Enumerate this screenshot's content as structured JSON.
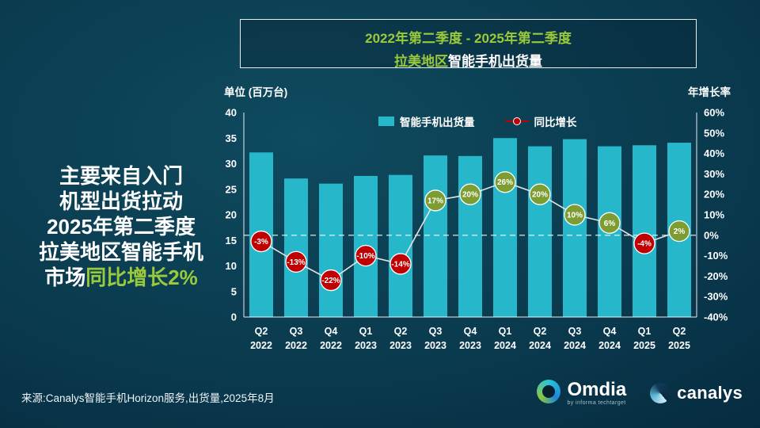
{
  "header": {
    "period": "2022年第二季度 - 2025年第二季度",
    "region": "拉美地区",
    "subject": "智能手机出货量"
  },
  "headline": {
    "lines": [
      "主要来自入门",
      "机型出货拉动",
      "2025年第二季度",
      "拉美地区智能手机"
    ],
    "last_white": "市场",
    "last_green": "同比增长2%"
  },
  "footer": {
    "source": "来源:Canalys智能手机Horizon服务,出货量,2025年8月"
  },
  "logos": {
    "omdia": "Omdia",
    "omdia_sub": "by informa techtarget",
    "canalys": "canalys"
  },
  "chart_data": {
    "type": "bar",
    "subtype": "bar+line-combo",
    "title": "拉美地区智能手机出货量",
    "period": "2022年第二季度 - 2025年第二季度",
    "categories": [
      [
        "Q2",
        "2022"
      ],
      [
        "Q3",
        "2022"
      ],
      [
        "Q4",
        "2022"
      ],
      [
        "Q1",
        "2023"
      ],
      [
        "Q2",
        "2023"
      ],
      [
        "Q3",
        "2023"
      ],
      [
        "Q4",
        "2023"
      ],
      [
        "Q1",
        "2024"
      ],
      [
        "Q2",
        "2024"
      ],
      [
        "Q3",
        "2024"
      ],
      [
        "Q4",
        "2024"
      ],
      [
        "Q1",
        "2025"
      ],
      [
        "Q2",
        "2025"
      ]
    ],
    "left_axis": {
      "title": "单位 (百万台)",
      "min": 0,
      "max": 40,
      "step": 5
    },
    "right_axis": {
      "title": "年增长率",
      "min": -40,
      "max": 60,
      "step": 10,
      "unit": "%"
    },
    "series": [
      {
        "name": "智能手机出货量",
        "type": "bar",
        "axis": "left",
        "unit": "百万台",
        "values": [
          32.2,
          27.1,
          26.1,
          27.6,
          27.8,
          31.6,
          31.5,
          35.0,
          33.4,
          34.8,
          33.4,
          33.6,
          34.1
        ]
      },
      {
        "name": "同比增长",
        "type": "line",
        "axis": "right",
        "unit": "%",
        "values": [
          -3,
          -13,
          -22,
          -10,
          -14,
          17,
          20,
          26,
          20,
          10,
          6,
          -4,
          2
        ],
        "labels": [
          "-3%",
          "-13%",
          "-22%",
          "-10%",
          "-14%",
          "17%",
          "20%",
          "26%",
          "20%",
          "10%",
          "6%",
          "-4%",
          "2%"
        ]
      }
    ],
    "zero_line": true,
    "legend_position": "top",
    "grid": false,
    "colors": {
      "bar": "#26b7cb",
      "line": "#e3e3e3",
      "marker_positive": "#7d9c31",
      "marker_negative": "#c00000",
      "marker_stroke": "#ffffff",
      "axis": "#ffffff",
      "zero_line": "#ffffff",
      "accent_green": "#9aca3c"
    }
  }
}
